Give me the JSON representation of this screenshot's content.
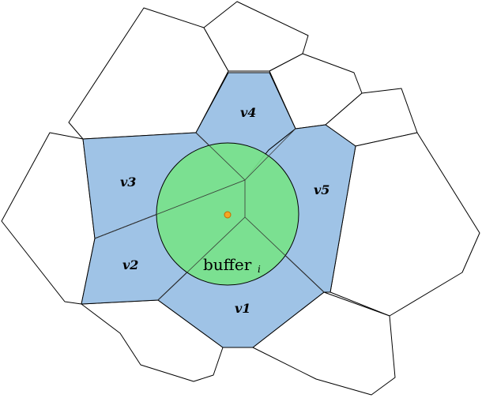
{
  "regions": [
    {
      "id": "v1",
      "label": "v1"
    },
    {
      "id": "v2",
      "label": "v2"
    },
    {
      "id": "v3",
      "label": "v3"
    },
    {
      "id": "v4",
      "label": "v4"
    },
    {
      "id": "v5",
      "label": "v5"
    }
  ],
  "buffer": {
    "label": "buffer",
    "subscript": "i"
  },
  "colors": {
    "neighbor_cell": "#9fc3e6",
    "buffer": "#77e38a",
    "center_point": "#f5a623",
    "outer_cell": "#ffffff"
  }
}
